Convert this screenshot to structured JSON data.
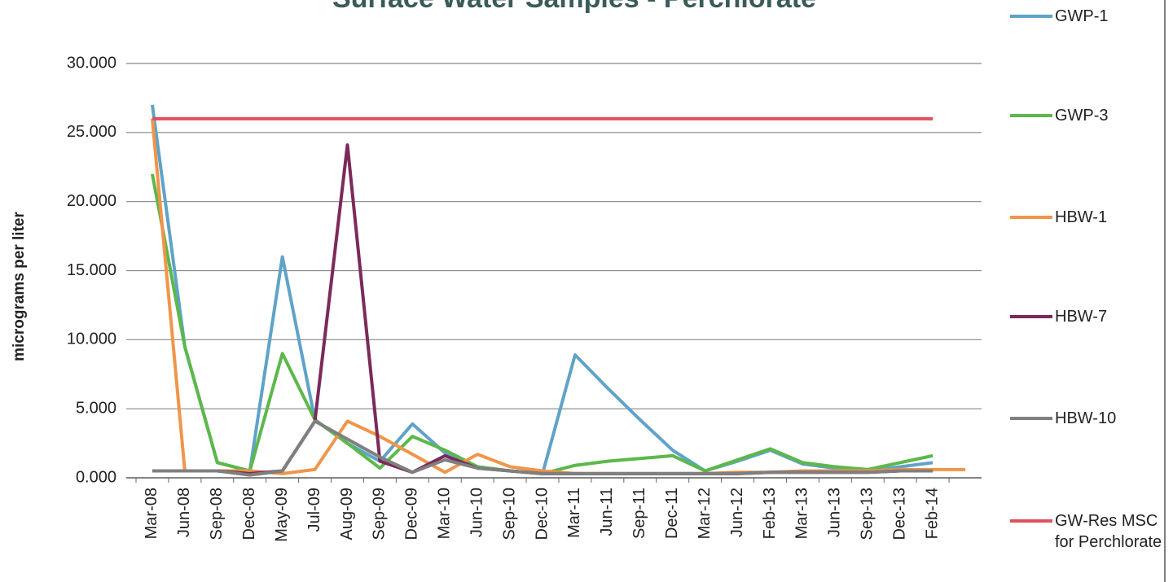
{
  "chart_data": {
    "type": "line",
    "title": "Surface Water Samples - Perchlorate",
    "y_label": "micrograms per liter",
    "categories": [
      "Mar-08",
      "Jun-08",
      "Sep-08",
      "Dec-08",
      "May-09",
      "Jul-09",
      "Aug-09",
      "Sep-09",
      "Dec-09",
      "Mar-10",
      "Jun-10",
      "Sep-10",
      "Dec-10",
      "Mar-11",
      "Jun-11",
      "Sep-11",
      "Dec-11",
      "Mar-12",
      "Jun-12",
      "Feb-13",
      "Mar-13",
      "Jun-13",
      "Sep-13",
      "Dec-13",
      "Feb-14",
      null
    ],
    "series": [
      {
        "name": "GWP-1",
        "color": "#5fa3c8",
        "values": [
          27,
          9.5,
          1.1,
          0.5,
          16,
          4.2,
          2.5,
          1.2,
          3.9,
          1.8,
          0.8,
          0.5,
          0.3,
          8.9,
          6.5,
          4.2,
          2,
          0.5,
          1.2,
          2,
          1,
          0.7,
          0.5,
          0.8,
          1.1,
          null
        ]
      },
      {
        "name": "GWP-3",
        "color": "#5cb84a",
        "values": [
          22,
          9.5,
          1.1,
          0.5,
          9,
          4.2,
          2.5,
          0.7,
          3,
          2,
          0.8,
          0.5,
          0.3,
          0.9,
          1.2,
          1.4,
          1.6,
          0.5,
          1.3,
          2.1,
          1.1,
          0.8,
          0.6,
          1.1,
          1.6,
          null
        ]
      },
      {
        "name": "HBW-1",
        "color": "#f0954a",
        "values": [
          26,
          0.5,
          0.5,
          0.5,
          0.3,
          0.6,
          4.1,
          3,
          1.7,
          0.4,
          1.7,
          0.8,
          0.5,
          0.3,
          0.3,
          0.3,
          0.3,
          0.3,
          0.4,
          0.4,
          0.5,
          0.5,
          0.5,
          0.6,
          0.6,
          0.6
        ]
      },
      {
        "name": "HBW-7",
        "color": "#7b2a5a",
        "values": [
          0.5,
          0.5,
          0.5,
          0.3,
          0.5,
          4.1,
          24.1,
          1.2,
          0.4,
          1.6,
          0.7,
          0.5,
          0.3,
          0.3,
          0.3,
          0.3,
          0.3,
          0.3,
          0.3,
          0.4,
          0.4,
          0.4,
          0.4,
          0.5,
          0.5,
          null
        ]
      },
      {
        "name": "HBW-10",
        "color": "#7f7f7f",
        "values": [
          0.5,
          0.5,
          0.5,
          0.2,
          0.5,
          4.1,
          2.8,
          1.5,
          0.4,
          1.3,
          0.7,
          0.5,
          0.3,
          0.3,
          0.3,
          0.3,
          0.3,
          0.3,
          0.3,
          0.4,
          0.4,
          0.4,
          0.4,
          0.5,
          0.5,
          null
        ]
      },
      {
        "name": "GW-Res MSC for Perchlorate",
        "color": "#e0505f",
        "values": [
          26,
          26,
          26,
          26,
          26,
          26,
          26,
          26,
          26,
          26,
          26,
          26,
          26,
          26,
          26,
          26,
          26,
          26,
          26,
          26,
          26,
          26,
          26,
          26,
          26,
          null
        ]
      }
    ],
    "ylim": [
      0,
      30
    ],
    "yticks": [
      {
        "value": 0,
        "label": "0.000"
      },
      {
        "value": 5,
        "label": "5.000"
      },
      {
        "value": 10,
        "label": "10.000"
      },
      {
        "value": 15,
        "label": "15.000"
      },
      {
        "value": 20,
        "label": "20.000"
      },
      {
        "value": 25,
        "label": "25.000"
      },
      {
        "value": 30,
        "label": "30.000"
      }
    ],
    "grid": true,
    "legend": "right"
  }
}
